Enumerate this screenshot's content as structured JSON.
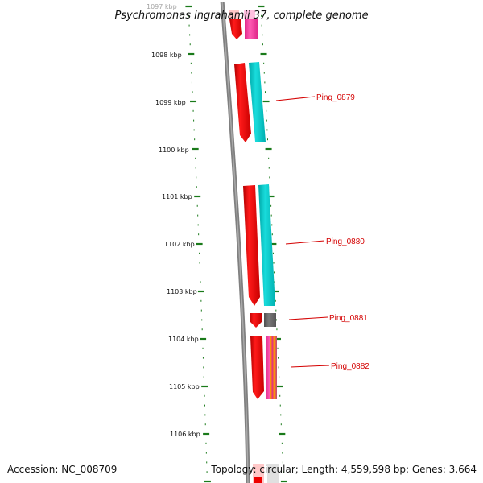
{
  "title": "Psychromonas ingrahamii 37, complete genome",
  "footer": {
    "accession": "Accession: NC_008709",
    "stats": "Topology: circular; Length: 4,559,598 bp; Genes: 3,664"
  },
  "ruler": {
    "labels": [
      "1097 kbp",
      "1098 kbp",
      "1099 kbp",
      "1100 kbp",
      "1101 kbp",
      "1102 kbp",
      "1103 kbp",
      "1104 kbp",
      "1105 kbp",
      "1106 kbp"
    ]
  },
  "gene_labels": [
    "Ping_0879",
    "Ping_0880",
    "Ping_0881",
    "Ping_0882"
  ],
  "colors": {
    "backbone": "#808080",
    "ticks": "#1a7a1a",
    "cds": "#ee0000",
    "gene": "#00c8c8",
    "label": "#d40000",
    "pseudo": "#666666",
    "pink": "#ff3ca0",
    "orange": "#ff9900"
  }
}
